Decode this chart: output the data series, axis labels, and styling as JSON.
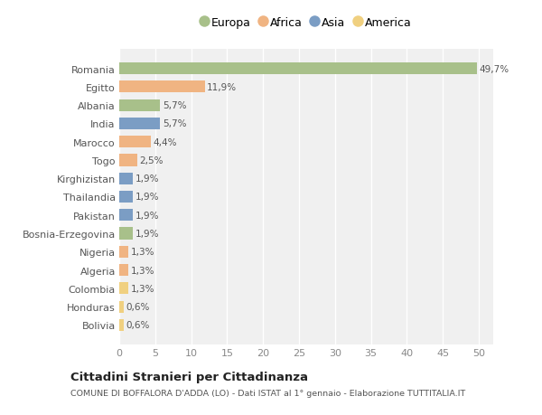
{
  "countries": [
    "Romania",
    "Egitto",
    "Albania",
    "India",
    "Marocco",
    "Togo",
    "Kirghizistan",
    "Thailandia",
    "Pakistan",
    "Bosnia-Erzegovina",
    "Nigeria",
    "Algeria",
    "Colombia",
    "Honduras",
    "Bolivia"
  ],
  "values": [
    49.7,
    11.9,
    5.7,
    5.7,
    4.4,
    2.5,
    1.9,
    1.9,
    1.9,
    1.9,
    1.3,
    1.3,
    1.3,
    0.6,
    0.6
  ],
  "labels": [
    "49,7%",
    "11,9%",
    "5,7%",
    "5,7%",
    "4,4%",
    "2,5%",
    "1,9%",
    "1,9%",
    "1,9%",
    "1,9%",
    "1,3%",
    "1,3%",
    "1,3%",
    "0,6%",
    "0,6%"
  ],
  "continents": [
    "Europa",
    "Africa",
    "Europa",
    "Asia",
    "Africa",
    "Africa",
    "Asia",
    "Asia",
    "Asia",
    "Europa",
    "Africa",
    "Africa",
    "America",
    "America",
    "America"
  ],
  "continent_colors": {
    "Europa": "#a8c08a",
    "Africa": "#f0b482",
    "Asia": "#7b9dc4",
    "America": "#f0d080"
  },
  "legend_order": [
    "Europa",
    "Africa",
    "Asia",
    "America"
  ],
  "title": "Cittadini Stranieri per Cittadinanza",
  "subtitle": "COMUNE DI BOFFALORA D'ADDA (LO) - Dati ISTAT al 1° gennaio - Elaborazione TUTTITALIA.IT",
  "xlim": [
    0,
    52
  ],
  "xticks": [
    0,
    5,
    10,
    15,
    20,
    25,
    30,
    35,
    40,
    45,
    50
  ],
  "plot_bg_color": "#f0f0f0",
  "fig_bg_color": "#ffffff",
  "grid_color": "#ffffff",
  "bar_height": 0.65,
  "label_fontsize": 7.5,
  "ytick_fontsize": 8,
  "xtick_fontsize": 8
}
